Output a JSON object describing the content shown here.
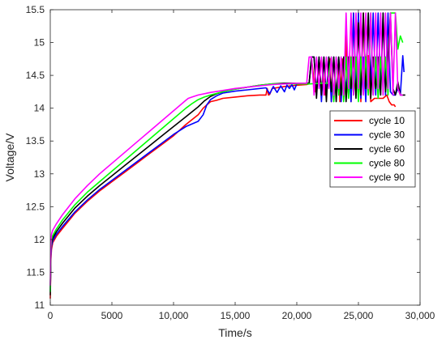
{
  "chart_data": {
    "type": "line",
    "title": "",
    "xlabel": "Time/s",
    "ylabel": "Voltage/V",
    "xlim": [
      0,
      30000
    ],
    "ylim": [
      11,
      15.5
    ],
    "xticks": [
      0,
      5000,
      10000,
      15000,
      20000,
      25000,
      30000
    ],
    "xtick_labels": [
      "0",
      "5000",
      "10,000",
      "15,000",
      "20,000",
      "25,000",
      "30,000"
    ],
    "yticks": [
      11,
      11.5,
      12,
      12.5,
      13,
      13.5,
      14,
      14.5,
      15,
      15.5
    ],
    "ytick_labels": [
      "11",
      "11.5",
      "12",
      "12.5",
      "13",
      "13.5",
      "14",
      "14.5",
      "15",
      "15.5"
    ],
    "grid": false,
    "legend_position": "right",
    "series": [
      {
        "name": "cycle 10",
        "color": "#ff0000",
        "x": [
          0,
          50,
          100,
          200,
          500,
          1000,
          2000,
          3000,
          4000,
          5000,
          6000,
          7000,
          8000,
          9000,
          10000,
          11000,
          12000,
          12400,
          12700,
          13000,
          13500,
          14000,
          15000,
          16000,
          17000,
          17500,
          17600,
          17700,
          17800,
          18000,
          19000,
          20000,
          20800,
          21000,
          21200,
          21500,
          22000,
          22300,
          22500,
          22700,
          22800,
          23000,
          23200,
          23400,
          23500,
          23700,
          23900,
          24000,
          24100,
          24300,
          24400,
          24600,
          24800,
          25000,
          25200,
          25400,
          25600,
          25800,
          26000,
          26300,
          26500,
          26700,
          27000,
          27300,
          27500,
          27700,
          27900,
          28000
        ],
        "y": [
          11.1,
          11.7,
          11.85,
          11.95,
          12.05,
          12.17,
          12.4,
          12.58,
          12.74,
          12.88,
          13.02,
          13.16,
          13.3,
          13.44,
          13.58,
          13.75,
          13.9,
          14.0,
          14.05,
          14.1,
          14.12,
          14.15,
          14.17,
          14.19,
          14.2,
          14.2,
          14.3,
          14.2,
          14.21,
          14.3,
          14.33,
          14.35,
          14.36,
          14.37,
          14.75,
          14.25,
          14.75,
          14.2,
          14.4,
          14.75,
          14.1,
          14.75,
          14.2,
          14.75,
          14.1,
          14.75,
          14.3,
          15.3,
          14.3,
          14.8,
          14.1,
          15.45,
          14.2,
          15.45,
          14.1,
          15.45,
          14.2,
          14.8,
          14.1,
          14.15,
          14.15,
          14.15,
          14.15,
          14.2,
          14.1,
          14.05,
          14.05,
          14.02
        ]
      },
      {
        "name": "cycle 30",
        "color": "#0000ff",
        "x": [
          0,
          50,
          100,
          200,
          500,
          1000,
          2000,
          3000,
          4000,
          5000,
          6000,
          7000,
          8000,
          9000,
          10000,
          11000,
          12000,
          12400,
          12700,
          13000,
          13500,
          14000,
          15000,
          16000,
          17000,
          17500,
          17800,
          18100,
          18400,
          18700,
          19000,
          19200,
          19400,
          19600,
          19800,
          20000,
          20500,
          21000,
          21200,
          21400,
          21600,
          21800,
          22000,
          22200,
          22400,
          22600,
          22800,
          23000,
          23200,
          23400,
          23600,
          23800,
          24000,
          24200,
          24400,
          24600,
          24800,
          25000,
          25200,
          25400,
          25600,
          25800,
          26000,
          26200,
          26400,
          26600,
          26800,
          27000,
          27200,
          27400,
          27600,
          27800,
          28000,
          28200,
          28400,
          28600,
          28700
        ],
        "y": [
          11.2,
          11.75,
          11.9,
          11.98,
          12.08,
          12.2,
          12.42,
          12.6,
          12.76,
          12.9,
          13.04,
          13.18,
          13.32,
          13.46,
          13.6,
          13.72,
          13.8,
          13.9,
          14.05,
          14.13,
          14.19,
          14.23,
          14.26,
          14.28,
          14.3,
          14.31,
          14.22,
          14.33,
          14.24,
          14.34,
          14.25,
          14.35,
          14.3,
          14.36,
          14.28,
          14.37,
          14.37,
          14.37,
          14.78,
          14.78,
          14.2,
          14.78,
          14.1,
          14.78,
          14.2,
          14.78,
          14.1,
          14.78,
          14.15,
          14.78,
          14.1,
          14.78,
          14.25,
          14.78,
          14.1,
          15.45,
          14.2,
          15.45,
          14.15,
          14.78,
          14.1,
          15.45,
          14.3,
          15.45,
          14.2,
          15.45,
          14.3,
          15.45,
          14.2,
          15.45,
          14.25,
          14.2,
          14.2,
          14.3,
          14.2,
          14.8,
          14.55
        ]
      },
      {
        "name": "cycle 60",
        "color": "#000000",
        "x": [
          0,
          50,
          100,
          200,
          500,
          1000,
          2000,
          3000,
          4000,
          5000,
          6000,
          7000,
          8000,
          9000,
          10000,
          11000,
          12000,
          12500,
          13000,
          13500,
          14000,
          15000,
          16000,
          17000,
          18000,
          19000,
          20000,
          21000,
          21200,
          21400,
          21600,
          21800,
          22000,
          22200,
          22400,
          22600,
          22800,
          23000,
          23200,
          23400,
          23600,
          23800,
          24000,
          24200,
          24400,
          24600,
          24800,
          25000,
          25200,
          25400,
          25600,
          25800,
          26000,
          26200,
          26400,
          26600,
          26800,
          27000,
          27200,
          27400,
          27600,
          27800,
          28000,
          28200,
          28400,
          28600,
          28800
        ],
        "y": [
          11.15,
          11.8,
          11.95,
          12.02,
          12.12,
          12.25,
          12.48,
          12.66,
          12.82,
          12.97,
          13.12,
          13.27,
          13.42,
          13.57,
          13.72,
          13.87,
          14.02,
          14.11,
          14.18,
          14.22,
          14.25,
          14.29,
          14.32,
          14.35,
          14.37,
          14.38,
          14.38,
          14.38,
          14.78,
          14.78,
          14.15,
          14.78,
          14.2,
          14.78,
          14.1,
          14.78,
          14.25,
          14.78,
          14.1,
          14.78,
          14.2,
          14.78,
          14.1,
          14.78,
          14.3,
          14.78,
          14.15,
          15.3,
          14.2,
          15.45,
          14.3,
          15.45,
          14.15,
          14.78,
          14.3,
          14.78,
          14.2,
          15.45,
          14.25,
          14.78,
          15.45,
          14.3,
          14.2,
          14.4,
          14.2,
          14.2,
          14.2
        ]
      },
      {
        "name": "cycle 80",
        "color": "#00ff00",
        "x": [
          0,
          50,
          100,
          200,
          500,
          1000,
          2000,
          3000,
          4000,
          5000,
          6000,
          7000,
          8000,
          9000,
          10000,
          11000,
          11500,
          12000,
          12500,
          13000,
          14000,
          15000,
          16000,
          17000,
          18000,
          19000,
          20000,
          21000,
          22000,
          22500,
          22800,
          23000,
          23200,
          23400,
          23600,
          23800,
          24000,
          24200,
          24400,
          24600,
          24800,
          25000,
          25200,
          25400,
          25600,
          25800,
          26000,
          26200,
          26400,
          26600,
          26800,
          27000,
          27200,
          27400,
          27600,
          27800,
          28000,
          28200,
          28400,
          28600
        ],
        "y": [
          11.2,
          11.85,
          12.0,
          12.06,
          12.16,
          12.3,
          12.53,
          12.72,
          12.88,
          13.04,
          13.2,
          13.36,
          13.52,
          13.68,
          13.84,
          14.0,
          14.07,
          14.13,
          14.17,
          14.2,
          14.25,
          14.29,
          14.32,
          14.35,
          14.37,
          14.37,
          14.37,
          14.37,
          14.38,
          14.38,
          14.78,
          14.1,
          14.78,
          14.2,
          14.78,
          14.1,
          14.78,
          14.15,
          14.78,
          14.2,
          14.78,
          14.1,
          14.78,
          14.3,
          14.78,
          14.2,
          15.45,
          14.2,
          14.78,
          14.15,
          14.78,
          14.3,
          14.78,
          14.2,
          15.45,
          15.45,
          15.45,
          14.9,
          15.1,
          15.0
        ]
      },
      {
        "name": "cycle 90",
        "color": "#ff00ff",
        "x": [
          0,
          50,
          100,
          200,
          500,
          1000,
          2000,
          3000,
          4000,
          5000,
          6000,
          7000,
          8000,
          9000,
          10000,
          11000,
          11200,
          11500,
          12000,
          13000,
          14000,
          15000,
          16000,
          17000,
          18000,
          19000,
          20000,
          20800,
          21000,
          21200,
          21400,
          21600,
          21800,
          22000,
          22200,
          22400,
          22600,
          22800,
          23000,
          23200,
          23400,
          23600,
          23800,
          24000,
          24200,
          24400,
          24600,
          24800,
          25000,
          25200,
          25400,
          25600,
          25800,
          26000,
          26200,
          26400,
          26600,
          26800,
          27000,
          27200,
          27400,
          27600,
          27800,
          28000,
          28200,
          28400,
          28600
        ],
        "y": [
          11.3,
          11.95,
          12.08,
          12.14,
          12.24,
          12.38,
          12.62,
          12.82,
          13.0,
          13.16,
          13.32,
          13.48,
          13.64,
          13.8,
          13.96,
          14.12,
          14.15,
          14.17,
          14.2,
          14.24,
          14.27,
          14.3,
          14.32,
          14.34,
          14.36,
          14.37,
          14.38,
          14.38,
          14.78,
          14.78,
          14.2,
          14.78,
          14.3,
          14.78,
          14.2,
          14.78,
          14.3,
          14.78,
          14.2,
          14.78,
          14.3,
          14.78,
          14.2,
          15.45,
          14.3,
          15.45,
          14.2,
          15.45,
          14.3,
          15.45,
          14.2,
          15.45,
          14.3,
          15.45,
          14.2,
          15.45,
          14.3,
          15.45,
          14.2,
          15.45,
          14.3,
          15.45,
          14.2,
          15.45,
          14.3,
          14.2,
          14.2
        ]
      }
    ]
  }
}
